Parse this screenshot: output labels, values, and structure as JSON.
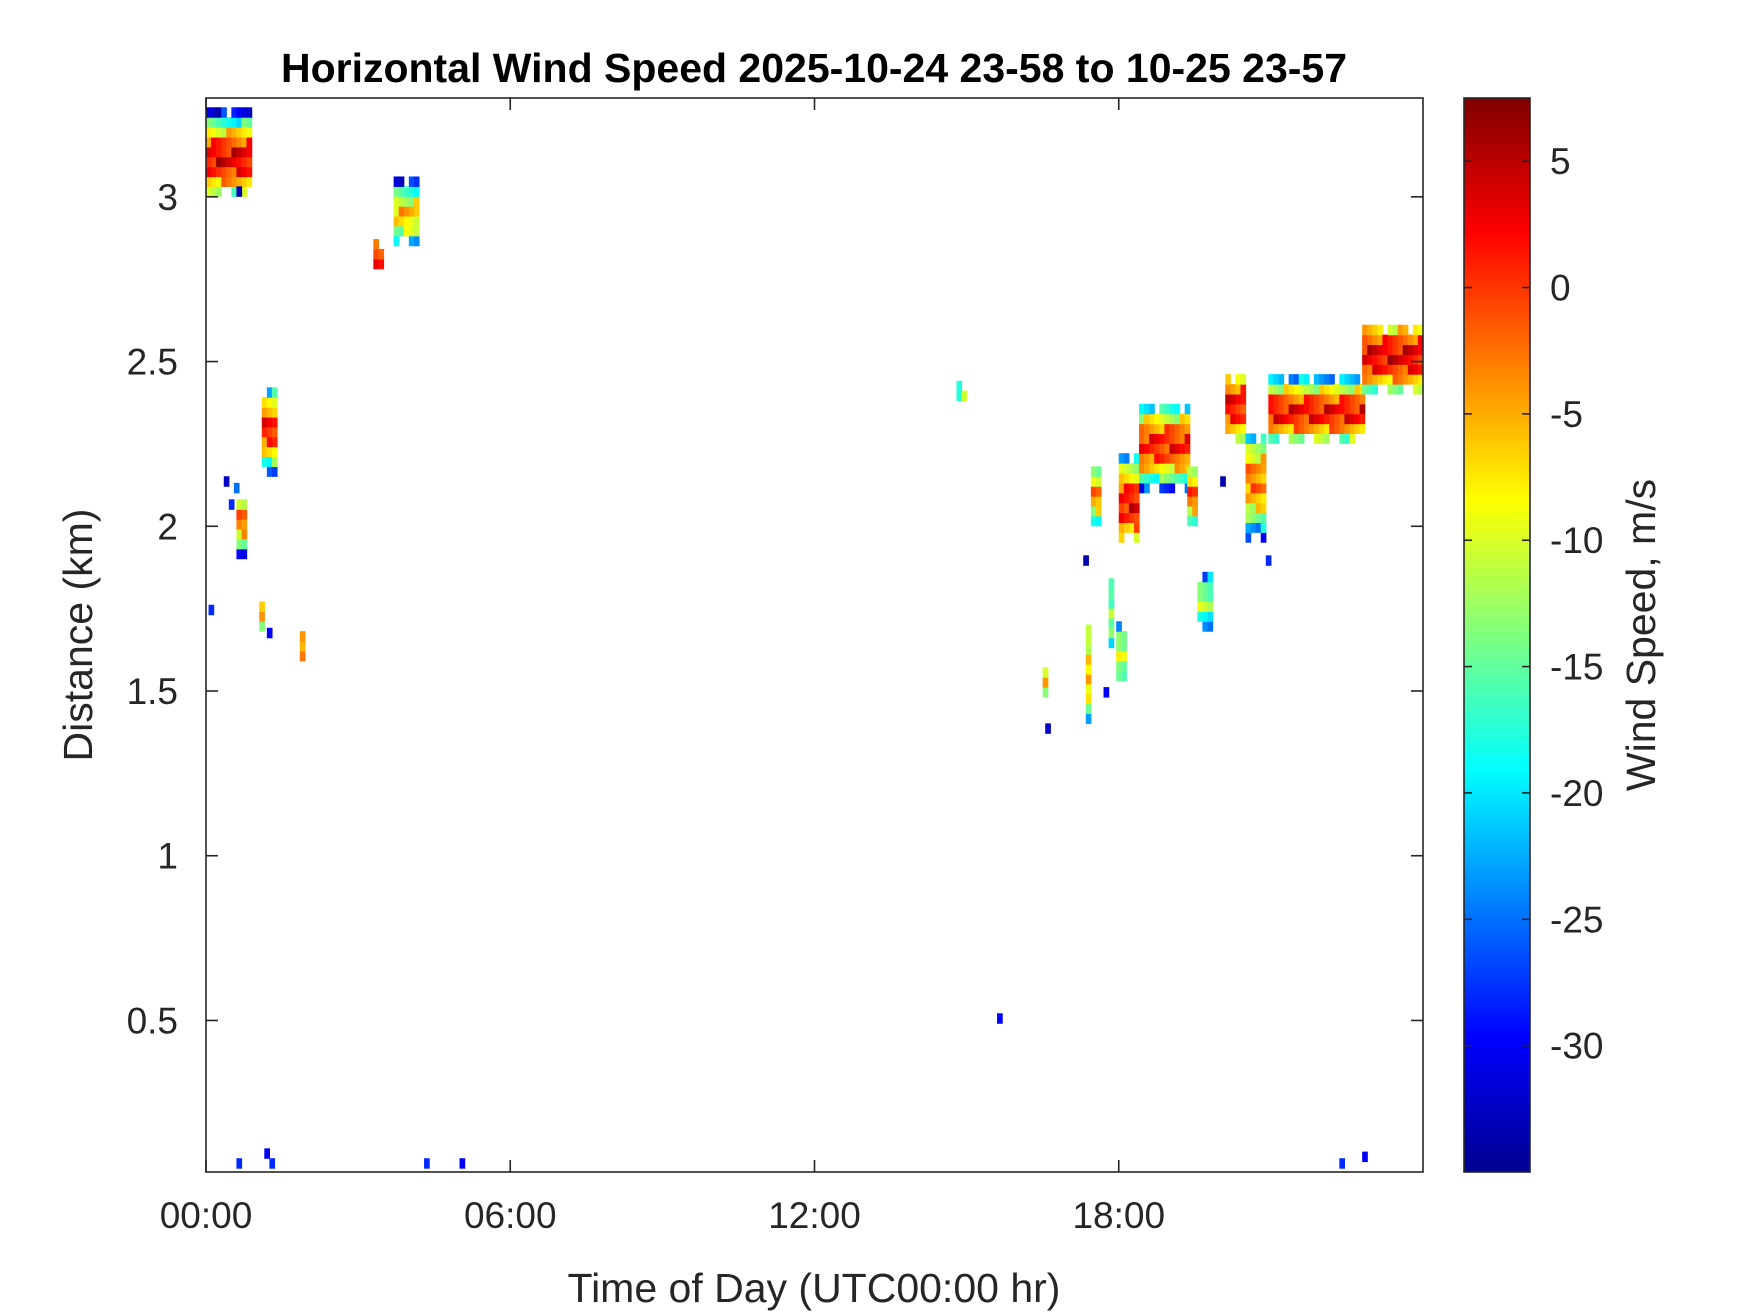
{
  "chart_data": {
    "type": "heatmap",
    "title": "Horizontal Wind Speed 2025-10-24 23-58 to 10-25 23-57",
    "xlabel": "Time of Day (UTC00:00 hr)",
    "ylabel": "Distance (km)",
    "x_unit": "hour",
    "xlim": [
      0,
      24
    ],
    "ylim": [
      0.04,
      3.3
    ],
    "x_ticks": [
      {
        "value": 0,
        "label": "00:00"
      },
      {
        "value": 6,
        "label": "06:00"
      },
      {
        "value": 12,
        "label": "12:00"
      },
      {
        "value": 18,
        "label": "18:00"
      }
    ],
    "y_ticks": [
      {
        "value": 0.5,
        "label": "0.5"
      },
      {
        "value": 1,
        "label": "1"
      },
      {
        "value": 1.5,
        "label": "1.5"
      },
      {
        "value": 2,
        "label": "2"
      },
      {
        "value": 2.5,
        "label": "2.5"
      },
      {
        "value": 3,
        "label": "3"
      }
    ],
    "colorbar": {
      "label": "Wind Speed, m/s",
      "colormap": "jet",
      "clim": [
        -35,
        7.5
      ],
      "ticks": [
        5,
        0,
        -5,
        -10,
        -15,
        -20,
        -25,
        -30
      ],
      "tick_labels": [
        "5",
        "0",
        "-5",
        "-10",
        "-15",
        "-20",
        "-25",
        "-30"
      ]
    },
    "grid": false,
    "cell_width_hours": 0.1,
    "cell_height_km": 0.03,
    "segments": [
      {
        "t": [
          0.0,
          0.9
        ],
        "d": [
          3.0,
          3.25
        ],
        "core": 3.1,
        "sigma": 0.06,
        "v": 3
      },
      {
        "t": [
          1.1,
          1.45
        ],
        "d": [
          2.15,
          2.4
        ],
        "core": 2.28,
        "sigma": 0.06,
        "v": 1
      },
      {
        "t": [
          3.3,
          3.45
        ],
        "d": [
          2.75,
          2.85
        ],
        "core": 2.8,
        "sigma": 0.04,
        "v": 2
      },
      {
        "t": [
          3.7,
          4.2
        ],
        "d": [
          2.85,
          3.05
        ],
        "core": 2.93,
        "sigma": 0.05,
        "v": -6
      },
      {
        "t": [
          0.6,
          0.75
        ],
        "d": [
          1.9,
          2.05
        ],
        "core": 2.0,
        "sigma": 0.05,
        "v": -3
      },
      {
        "t": [
          1.05,
          1.2
        ],
        "d": [
          1.68,
          1.75
        ],
        "core": 1.71,
        "sigma": 0.03,
        "v": -4
      },
      {
        "t": [
          1.85,
          1.95
        ],
        "d": [
          1.56,
          1.7
        ],
        "core": 1.62,
        "sigma": 0.05,
        "v": -3
      },
      {
        "t": [
          14.8,
          15.0
        ],
        "d": [
          2.35,
          2.42
        ],
        "core": 2.38,
        "sigma": 0.04,
        "v": -14
      },
      {
        "t": [
          16.5,
          16.6
        ],
        "d": [
          1.48,
          1.56
        ],
        "core": 1.52,
        "sigma": 0.04,
        "v": -5
      },
      {
        "t": [
          17.35,
          17.45
        ],
        "d": [
          1.4,
          1.68
        ],
        "core": 1.55,
        "sigma": 0.1,
        "v": -6
      },
      {
        "t": [
          17.45,
          17.6
        ],
        "d": [
          2.0,
          2.15
        ],
        "core": 2.08,
        "sigma": 0.05,
        "v": -4
      },
      {
        "t": [
          17.8,
          17.95
        ],
        "d": [
          1.6,
          1.85
        ],
        "core": 1.72,
        "sigma": 0.08,
        "v": -12
      },
      {
        "t": [
          17.95,
          18.1
        ],
        "d": [
          1.5,
          1.68
        ],
        "core": 1.6,
        "sigma": 0.06,
        "v": -10
      },
      {
        "t": [
          18.0,
          18.4
        ],
        "d": [
          1.95,
          2.2
        ],
        "core": 2.05,
        "sigma": 0.07,
        "v": 2
      },
      {
        "t": [
          18.4,
          19.4
        ],
        "d": [
          2.1,
          2.35
        ],
        "core": 2.23,
        "sigma": 0.06,
        "v": 1
      },
      {
        "t": [
          19.35,
          19.55
        ],
        "d": [
          2.0,
          2.15
        ],
        "core": 2.08,
        "sigma": 0.05,
        "v": -2
      },
      {
        "t": [
          19.55,
          19.85
        ],
        "d": [
          1.68,
          1.85
        ],
        "core": 1.76,
        "sigma": 0.05,
        "v": -12
      },
      {
        "t": [
          20.1,
          20.5
        ],
        "d": [
          2.25,
          2.45
        ],
        "core": 2.35,
        "sigma": 0.06,
        "v": 2
      },
      {
        "t": [
          20.5,
          20.95
        ],
        "d": [
          1.95,
          2.25
        ],
        "core": 2.12,
        "sigma": 0.08,
        "v": -3
      },
      {
        "t": [
          20.95,
          22.8
        ],
        "d": [
          2.25,
          2.45
        ],
        "core": 2.33,
        "sigma": 0.05,
        "v": 2
      },
      {
        "t": [
          22.8,
          24.0
        ],
        "d": [
          2.4,
          2.6
        ],
        "core": 2.5,
        "sigma": 0.06,
        "v": 3
      }
    ],
    "isolated_points": [
      {
        "t": 0.05,
        "d": 1.73,
        "v": -28
      },
      {
        "t": 0.35,
        "d": 2.12,
        "v": -32
      },
      {
        "t": 0.45,
        "d": 2.05,
        "v": -28
      },
      {
        "t": 0.55,
        "d": 2.1,
        "v": -25
      },
      {
        "t": 0.6,
        "d": 3.0,
        "v": -33
      },
      {
        "t": 1.2,
        "d": 1.66,
        "v": -30
      },
      {
        "t": 15.6,
        "d": 0.49,
        "v": -30
      },
      {
        "t": 16.55,
        "d": 1.37,
        "v": -32
      },
      {
        "t": 17.3,
        "d": 1.88,
        "v": -33
      },
      {
        "t": 17.7,
        "d": 1.48,
        "v": -30
      },
      {
        "t": 20.0,
        "d": 2.12,
        "v": -33
      },
      {
        "t": 20.9,
        "d": 1.88,
        "v": -28
      },
      {
        "t": 0.6,
        "d": 0.05,
        "v": -28
      },
      {
        "t": 1.15,
        "d": 0.08,
        "v": -30
      },
      {
        "t": 1.25,
        "d": 0.05,
        "v": -28
      },
      {
        "t": 4.3,
        "d": 0.05,
        "v": -28
      },
      {
        "t": 5.0,
        "d": 0.05,
        "v": -30
      },
      {
        "t": 22.35,
        "d": 0.05,
        "v": -28
      },
      {
        "t": 22.8,
        "d": 0.07,
        "v": -30
      }
    ]
  }
}
